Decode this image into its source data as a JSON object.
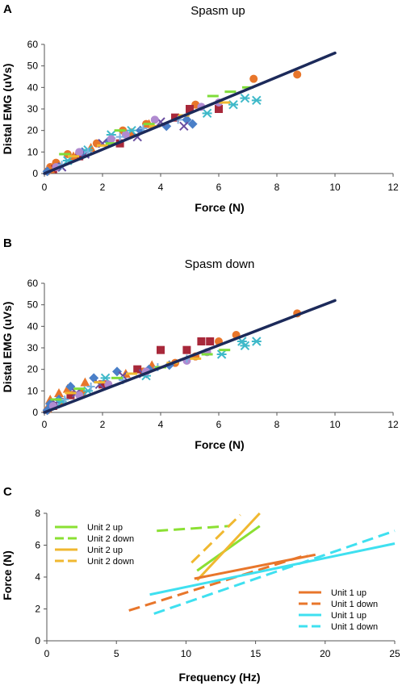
{
  "chart_data": [
    {
      "panel": "A",
      "type": "scatter",
      "title": "Spasm up",
      "xlabel": "Force (N)",
      "ylabel": "Distal EMG (uVs)",
      "xlim": [
        0,
        12
      ],
      "ylim": [
        0,
        60
      ],
      "xticks": [
        "0",
        "2",
        "4",
        "6",
        "8",
        "10",
        "12"
      ],
      "yticks": [
        "0",
        "10",
        "20",
        "30",
        "40",
        "50",
        "60"
      ],
      "grid": false,
      "fit_line": {
        "color": "#1c2a5a",
        "points": [
          [
            0,
            0
          ],
          [
            10,
            56
          ]
        ]
      },
      "series": [
        {
          "marker": "circle",
          "color": "#e8762b",
          "points": [
            [
              0.1,
              1
            ],
            [
              0.2,
              3
            ],
            [
              0.4,
              5
            ],
            [
              0.8,
              9
            ],
            [
              1.8,
              14
            ],
            [
              2.7,
              20
            ],
            [
              3.5,
              23
            ],
            [
              5.2,
              32
            ],
            [
              7.2,
              44
            ],
            [
              8.7,
              46
            ]
          ]
        },
        {
          "marker": "square",
          "color": "#a8283a",
          "points": [
            [
              0.3,
              2
            ],
            [
              1.2,
              8
            ],
            [
              2.6,
              14
            ],
            [
              4.5,
              26
            ],
            [
              6,
              30
            ],
            [
              5,
              30
            ]
          ]
        },
        {
          "marker": "triangle",
          "color": "#e8762b",
          "points": [
            [
              0.2,
              2
            ],
            [
              0.5,
              4
            ],
            [
              1,
              8
            ],
            [
              1.6,
              12
            ],
            [
              3,
              19
            ],
            [
              3.6,
              23
            ]
          ]
        },
        {
          "marker": "diamond",
          "color": "#4a7fc8",
          "points": [
            [
              0.1,
              1
            ],
            [
              0.5,
              3
            ],
            [
              1.3,
              10
            ],
            [
              2.2,
              15
            ],
            [
              3.3,
              20
            ],
            [
              4.2,
              22
            ],
            [
              4.9,
              25
            ],
            [
              5.1,
              23
            ]
          ]
        },
        {
          "marker": "x",
          "color": "#6a4ea0",
          "points": [
            [
              0.6,
              3
            ],
            [
              1.4,
              9
            ],
            [
              2,
              14
            ],
            [
              3.2,
              17
            ],
            [
              4,
              24
            ],
            [
              4.8,
              22
            ]
          ]
        },
        {
          "marker": "star",
          "color": "#3fb9c9",
          "points": [
            [
              0.8,
              6
            ],
            [
              1.5,
              11
            ],
            [
              2.3,
              18
            ],
            [
              3,
              20
            ],
            [
              5.6,
              28
            ],
            [
              6.5,
              32
            ],
            [
              6.9,
              35
            ],
            [
              7.3,
              34
            ]
          ]
        },
        {
          "marker": "circle",
          "color": "#b08ad0",
          "points": [
            [
              0.4,
              3
            ],
            [
              1.2,
              10
            ],
            [
              2.3,
              16
            ],
            [
              2.8,
              18
            ],
            [
              3.8,
              25
            ],
            [
              5.4,
              31
            ],
            [
              6,
              33
            ]
          ]
        },
        {
          "marker": "plus",
          "color": "#7cb1e0",
          "points": [
            [
              0.6,
              4
            ],
            [
              1.5,
              10
            ],
            [
              2.6,
              17
            ],
            [
              3.4,
              21
            ],
            [
              4.6,
              25
            ]
          ]
        },
        {
          "marker": "dash",
          "color": "#7fdc3a",
          "points": [
            [
              0.7,
              9
            ],
            [
              2.3,
              14
            ],
            [
              2.6,
              20
            ],
            [
              3.6,
              23
            ],
            [
              5.8,
              36
            ],
            [
              6.4,
              38
            ],
            [
              7,
              40
            ]
          ]
        },
        {
          "marker": "dash",
          "color": "#f0b830",
          "points": [
            [
              1,
              8
            ],
            [
              2,
              13
            ],
            [
              3.8,
              22
            ],
            [
              4.8,
              27
            ],
            [
              6.2,
              33
            ]
          ]
        }
      ]
    },
    {
      "panel": "B",
      "type": "scatter",
      "title": "Spasm down",
      "xlabel": "Force (N)",
      "ylabel": "Distal EMG (uVs)",
      "xlim": [
        0,
        12
      ],
      "ylim": [
        0,
        60
      ],
      "xticks": [
        "0",
        "2",
        "4",
        "6",
        "8",
        "10",
        "12"
      ],
      "yticks": [
        "0",
        "10",
        "20",
        "30",
        "40",
        "50",
        "60"
      ],
      "grid": false,
      "fit_line": {
        "color": "#1c2a5a",
        "points": [
          [
            0,
            0
          ],
          [
            10,
            52
          ]
        ]
      },
      "series": [
        {
          "marker": "circle",
          "color": "#e8762b",
          "points": [
            [
              0.1,
              1
            ],
            [
              0.3,
              3
            ],
            [
              0.6,
              5
            ],
            [
              1.3,
              9
            ],
            [
              2.2,
              13
            ],
            [
              3.4,
              19
            ],
            [
              4.5,
              23
            ],
            [
              5.2,
              26
            ],
            [
              6,
              33
            ],
            [
              6.6,
              36
            ],
            [
              8.7,
              46
            ]
          ]
        },
        {
          "marker": "square",
          "color": "#a8283a",
          "points": [
            [
              0.3,
              3
            ],
            [
              0.9,
              8
            ],
            [
              2,
              13
            ],
            [
              3.2,
              20
            ],
            [
              4,
              29
            ],
            [
              4.9,
              29
            ],
            [
              5.4,
              33
            ],
            [
              5.7,
              33
            ]
          ]
        },
        {
          "marker": "triangle",
          "color": "#e8762b",
          "points": [
            [
              0.1,
              2
            ],
            [
              0.2,
              6
            ],
            [
              0.5,
              9
            ],
            [
              0.8,
              11
            ],
            [
              1.4,
              14
            ],
            [
              2.8,
              18
            ],
            [
              3.7,
              22
            ]
          ]
        },
        {
          "marker": "diamond",
          "color": "#4a7fc8",
          "points": [
            [
              0.1,
              1
            ],
            [
              0.2,
              4
            ],
            [
              0.5,
              6
            ],
            [
              0.9,
              12
            ],
            [
              1.7,
              16
            ],
            [
              2.5,
              19
            ],
            [
              3.6,
              20
            ],
            [
              4.3,
              22
            ]
          ]
        },
        {
          "marker": "x",
          "color": "#6a4ea0",
          "points": [
            [
              0.4,
              4
            ],
            [
              1.1,
              9
            ],
            [
              1.9,
              13
            ],
            [
              2.7,
              17
            ],
            [
              3.4,
              18
            ]
          ]
        },
        {
          "marker": "star",
          "color": "#3fb9c9",
          "points": [
            [
              0.6,
              5
            ],
            [
              1.5,
              10
            ],
            [
              2.1,
              16
            ],
            [
              3.5,
              17
            ],
            [
              6.1,
              27
            ],
            [
              6.8,
              33
            ],
            [
              7.3,
              33
            ],
            [
              6.9,
              31
            ]
          ]
        },
        {
          "marker": "circle",
          "color": "#b08ad0",
          "points": [
            [
              0.3,
              3
            ],
            [
              1.2,
              8
            ],
            [
              2.2,
              13
            ],
            [
              3.5,
              19
            ],
            [
              4.9,
              24
            ],
            [
              5.6,
              28
            ]
          ]
        },
        {
          "marker": "plus",
          "color": "#7cb1e0",
          "points": [
            [
              0.7,
              6
            ],
            [
              1.6,
              12
            ],
            [
              2.7,
              15
            ],
            [
              3.9,
              21
            ],
            [
              4.9,
              25
            ]
          ]
        },
        {
          "marker": "dash",
          "color": "#7fdc3a",
          "points": [
            [
              0.4,
              6
            ],
            [
              1.2,
              11
            ],
            [
              2.5,
              16
            ],
            [
              4,
              21
            ],
            [
              5.6,
              27
            ],
            [
              6.2,
              29
            ]
          ]
        },
        {
          "marker": "dash",
          "color": "#f0b830",
          "points": [
            [
              0.9,
              9
            ],
            [
              1.9,
              14
            ],
            [
              3,
              18
            ],
            [
              4.4,
              23
            ],
            [
              5.2,
              25
            ]
          ]
        }
      ]
    },
    {
      "panel": "C",
      "type": "line",
      "title": "",
      "xlabel": "Frequency (Hz)",
      "ylabel": "Force (N)",
      "xlim": [
        0,
        25
      ],
      "ylim": [
        0,
        8
      ],
      "xticks": [
        "0",
        "5",
        "10",
        "15",
        "20",
        "25"
      ],
      "yticks": [
        "0",
        "2",
        "4",
        "6",
        "8"
      ],
      "grid": false,
      "legend_left": [
        "Unit 2 up",
        "Unit 2 down",
        "Unit 2 up",
        "Unit 2 down"
      ],
      "legend_right": [
        "Unit 1 up",
        "Unit 1 down",
        "Unit 1 up",
        "Unit 1 down"
      ],
      "series": [
        {
          "name": "Unit 2 up",
          "color": "#8be033",
          "style": "solid",
          "points": [
            [
              10.8,
              4.4
            ],
            [
              15.3,
              7.2
            ]
          ]
        },
        {
          "name": "Unit 2 down",
          "color": "#8be033",
          "style": "dashed",
          "points": [
            [
              7.9,
              6.9
            ],
            [
              13.1,
              7.2
            ]
          ]
        },
        {
          "name": "Unit 2 up",
          "color": "#f0b830",
          "style": "solid",
          "points": [
            [
              10.8,
              3.8
            ],
            [
              15.3,
              8.0
            ]
          ]
        },
        {
          "name": "Unit 2 down",
          "color": "#f0b830",
          "style": "dashed",
          "points": [
            [
              10.4,
              4.9
            ],
            [
              13.9,
              7.9
            ]
          ]
        },
        {
          "name": "Unit 1 up",
          "color": "#e8762b",
          "style": "solid",
          "points": [
            [
              10.6,
              3.9
            ],
            [
              19.3,
              5.4
            ]
          ]
        },
        {
          "name": "Unit 1 down",
          "color": "#e8762b",
          "style": "dashed",
          "points": [
            [
              5.9,
              1.9
            ],
            [
              18.7,
              5.4
            ]
          ]
        },
        {
          "name": "Unit 1 up",
          "color": "#3fe0f0",
          "style": "solid",
          "points": [
            [
              7.4,
              2.9
            ],
            [
              25,
              6.1
            ]
          ]
        },
        {
          "name": "Unit 1 down",
          "color": "#3fe0f0",
          "style": "dashed",
          "points": [
            [
              7.7,
              1.7
            ],
            [
              25,
              6.9
            ]
          ]
        }
      ]
    }
  ]
}
